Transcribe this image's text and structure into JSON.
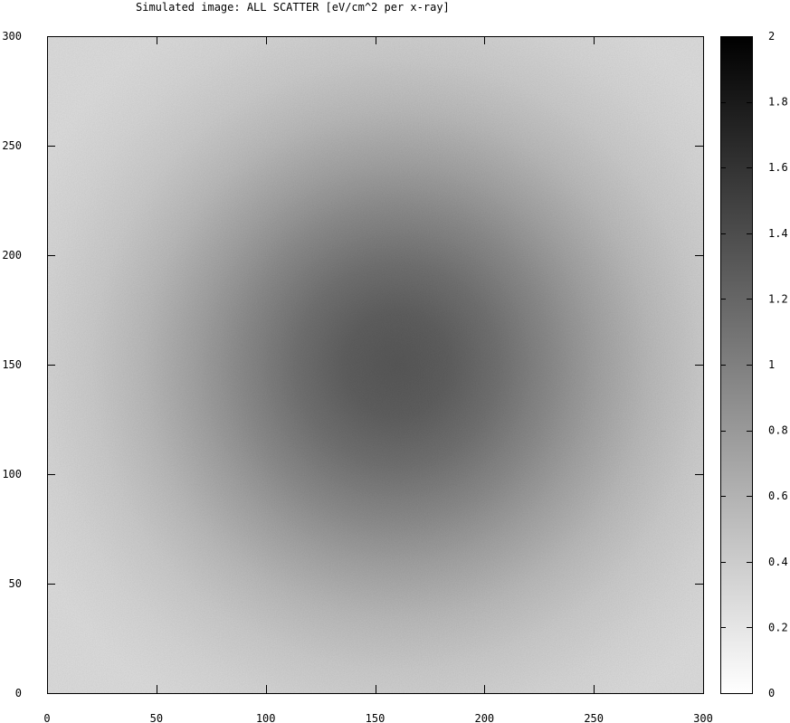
{
  "chart_data": {
    "type": "heatmap",
    "title": "Simulated image: ALL SCATTER [eV/cm^2 per x-ray]",
    "xlabel": "",
    "ylabel": "",
    "xlim": [
      0,
      300
    ],
    "ylim": [
      0,
      300
    ],
    "x_ticks": [
      0,
      50,
      100,
      150,
      200,
      250,
      300
    ],
    "y_ticks": [
      0,
      50,
      100,
      150,
      200,
      250,
      300
    ],
    "x_tick_labels": [
      "0",
      "50",
      "100",
      "150",
      "200",
      "250",
      "300"
    ],
    "y_tick_labels": [
      "0",
      "50",
      "100",
      "150",
      "200",
      "250",
      "300"
    ],
    "colorbar": {
      "range": [
        0,
        2
      ],
      "ticks": [
        0,
        0.2,
        0.4,
        0.6,
        0.8,
        1,
        1.2,
        1.4,
        1.6,
        1.8,
        2
      ],
      "tick_labels": [
        "0",
        "0.2",
        "0.4",
        "0.6",
        "0.8",
        "1",
        "1.2",
        "1.4",
        "1.6",
        "1.8",
        "2"
      ],
      "colormap": "grayscale (0 = white, 2 = black)"
    },
    "field": {
      "description": "Broad noisy scatter distribution peaked near the center",
      "peak_x": 160,
      "peak_y": 150,
      "peak_value": 1.3,
      "edge_value": 0.2
    },
    "grid": false,
    "legend": "none"
  }
}
